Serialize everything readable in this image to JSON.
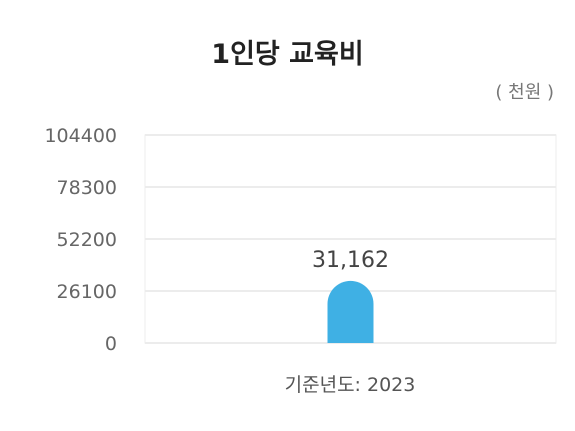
{
  "chart_data": {
    "type": "bar",
    "title": "1인당 교육비",
    "unit_label": "( 천원 )",
    "categories": [
      ""
    ],
    "values": [
      31162
    ],
    "value_labels": [
      "31,162"
    ],
    "yticks": [
      0,
      26100,
      52200,
      78300,
      104400
    ],
    "ylim": [
      0,
      104400
    ],
    "xlabel": "기준년도: 2023",
    "grid": true,
    "legend": "none",
    "bar_color": "#3fb0e4",
    "grid_color": "#ececec",
    "tick_color": "#666666"
  }
}
